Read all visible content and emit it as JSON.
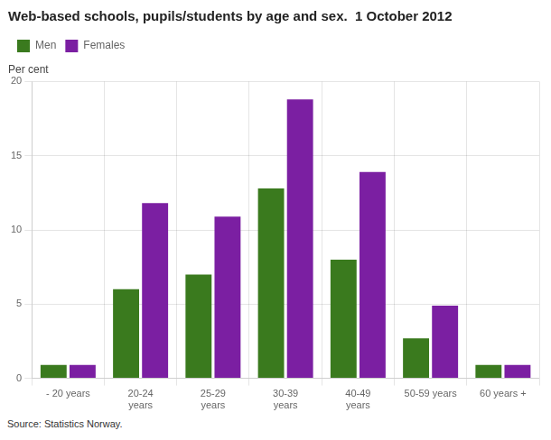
{
  "chart_data": {
    "type": "bar",
    "title": "Web-based schools, pupils/students by age and sex.  1 October 2012",
    "y_label": "Per cent",
    "categories": [
      "- 20 years",
      "20-24\nyears",
      "25-29\nyears",
      "30-39\nyears",
      "40-49\nyears",
      "50-59 years",
      "60 years +"
    ],
    "series": [
      {
        "name": "Men",
        "color": "#3a7a1e",
        "values": [
          0.9,
          6.0,
          7.0,
          12.8,
          8.0,
          2.7,
          0.9
        ]
      },
      {
        "name": "Females",
        "color": "#7b1fa2",
        "values": [
          0.9,
          11.8,
          10.9,
          18.8,
          13.9,
          4.9,
          0.9
        ]
      }
    ],
    "ylim": [
      0,
      20
    ],
    "yticks": [
      0,
      5,
      10,
      15,
      20
    ],
    "grid": true,
    "legend": "upper left",
    "source": "Source: Statistics Norway."
  }
}
